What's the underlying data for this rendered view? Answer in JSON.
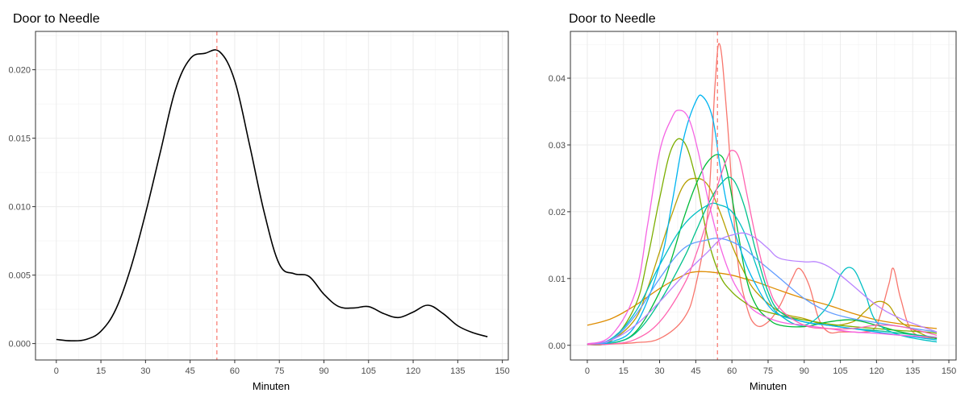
{
  "chart_data": [
    {
      "type": "line",
      "title": "Door to Needle",
      "xlabel": "Minuten",
      "ylabel": "",
      "xlim": [
        -7,
        152
      ],
      "ylim": [
        -0.0012,
        0.0228
      ],
      "xticks": [
        0,
        15,
        30,
        45,
        60,
        75,
        90,
        105,
        120,
        135,
        150
      ],
      "yticks": [
        0.0,
        0.005,
        0.01,
        0.015,
        0.02
      ],
      "ytick_labels": [
        "0.000",
        "0.005",
        "0.010",
        "0.015",
        "0.020"
      ],
      "grid": true,
      "reference_line": {
        "x": 54,
        "color": "#f8766d",
        "style": "dashed"
      },
      "series": [
        {
          "color": "#000000",
          "x": [
            0,
            5,
            10,
            15,
            20,
            25,
            30,
            35,
            40,
            45,
            50,
            55,
            60,
            65,
            70,
            75,
            80,
            85,
            90,
            95,
            100,
            105,
            110,
            115,
            120,
            125,
            130,
            135,
            140,
            145
          ],
          "y": [
            0.0003,
            0.0002,
            0.0003,
            0.0009,
            0.0025,
            0.0055,
            0.0095,
            0.014,
            0.0185,
            0.0208,
            0.0212,
            0.0213,
            0.0192,
            0.0145,
            0.0095,
            0.0058,
            0.0051,
            0.0049,
            0.0036,
            0.0027,
            0.0026,
            0.0027,
            0.0022,
            0.0019,
            0.0023,
            0.0028,
            0.0022,
            0.0013,
            0.0008,
            0.0005
          ]
        }
      ]
    },
    {
      "type": "line",
      "title": "Door to Needle",
      "xlabel": "Minuten",
      "ylabel": "",
      "xlim": [
        -7,
        153
      ],
      "ylim": [
        -0.0022,
        0.047
      ],
      "xticks": [
        0,
        15,
        30,
        45,
        60,
        75,
        90,
        105,
        120,
        135,
        150
      ],
      "yticks": [
        0.0,
        0.01,
        0.02,
        0.03,
        0.04
      ],
      "ytick_labels": [
        "0.00",
        "0.01",
        "0.02",
        "0.03",
        "0.04"
      ],
      "grid": true,
      "reference_line": {
        "x": 54,
        "color": "#f8766d",
        "style": "dashed"
      },
      "series": [
        {
          "color": "#f8766d",
          "x": [
            0,
            10,
            20,
            30,
            40,
            45,
            50,
            53,
            55,
            58,
            62,
            66,
            70,
            75,
            80,
            85,
            88,
            92,
            96,
            100,
            105,
            110,
            115,
            120,
            125,
            127,
            130,
            135,
            145
          ],
          "y": [
            0.0002,
            0.0002,
            0.0004,
            0.001,
            0.004,
            0.009,
            0.02,
            0.039,
            0.045,
            0.034,
            0.014,
            0.006,
            0.003,
            0.0035,
            0.006,
            0.01,
            0.0115,
            0.009,
            0.004,
            0.002,
            0.002,
            0.002,
            0.002,
            0.003,
            0.009,
            0.0115,
            0.007,
            0.002,
            0.001
          ]
        },
        {
          "color": "#de8c00",
          "x": [
            0,
            10,
            20,
            30,
            40,
            45,
            50,
            55,
            60,
            65,
            70,
            80,
            90,
            100,
            110,
            120,
            130,
            140,
            145
          ],
          "y": [
            0.003,
            0.004,
            0.006,
            0.0085,
            0.0105,
            0.011,
            0.011,
            0.0108,
            0.0105,
            0.01,
            0.0095,
            0.0082,
            0.007,
            0.006,
            0.0048,
            0.0038,
            0.0032,
            0.0027,
            0.0025
          ]
        },
        {
          "color": "#b79f00",
          "x": [
            0,
            10,
            20,
            25,
            30,
            35,
            40,
            45,
            50,
            55,
            60,
            65,
            70,
            80,
            90,
            100,
            110,
            115,
            120,
            125,
            130,
            140,
            145
          ],
          "y": [
            0.0002,
            0.0008,
            0.004,
            0.0085,
            0.014,
            0.0195,
            0.024,
            0.025,
            0.024,
            0.02,
            0.015,
            0.011,
            0.008,
            0.005,
            0.004,
            0.003,
            0.0035,
            0.005,
            0.0065,
            0.006,
            0.0035,
            0.0015,
            0.001
          ]
        },
        {
          "color": "#7cae00",
          "x": [
            0,
            10,
            20,
            25,
            30,
            35,
            40,
            45,
            50,
            55,
            60,
            65,
            70,
            80,
            90,
            100,
            110,
            120,
            130,
            140,
            145
          ],
          "y": [
            0.0001,
            0.0007,
            0.006,
            0.013,
            0.022,
            0.0295,
            0.0305,
            0.025,
            0.016,
            0.0105,
            0.008,
            0.0065,
            0.0055,
            0.0045,
            0.0038,
            0.0032,
            0.0028,
            0.0025,
            0.0022,
            0.002,
            0.0018
          ]
        },
        {
          "color": "#00ba38",
          "x": [
            0,
            10,
            20,
            30,
            35,
            40,
            45,
            50,
            55,
            58,
            62,
            66,
            70,
            75,
            80,
            90,
            100,
            110,
            120,
            130,
            145
          ],
          "y": [
            0.0001,
            0.0003,
            0.002,
            0.008,
            0.013,
            0.019,
            0.024,
            0.0275,
            0.0285,
            0.026,
            0.018,
            0.01,
            0.006,
            0.004,
            0.003,
            0.0028,
            0.0035,
            0.0038,
            0.003,
            0.002,
            0.001
          ]
        },
        {
          "color": "#00c08b",
          "x": [
            0,
            10,
            20,
            30,
            40,
            45,
            50,
            55,
            60,
            65,
            70,
            75,
            80,
            90,
            100,
            110,
            120,
            130,
            145
          ],
          "y": [
            0.0001,
            0.0003,
            0.0018,
            0.0065,
            0.013,
            0.017,
            0.021,
            0.024,
            0.025,
            0.021,
            0.014,
            0.008,
            0.005,
            0.0035,
            0.003,
            0.0025,
            0.0022,
            0.0018,
            0.0012
          ]
        },
        {
          "color": "#00bfc4",
          "x": [
            0,
            10,
            20,
            30,
            40,
            50,
            55,
            60,
            65,
            70,
            75,
            80,
            90,
            100,
            105,
            110,
            115,
            120,
            130,
            145
          ],
          "y": [
            0.0001,
            0.001,
            0.005,
            0.012,
            0.018,
            0.021,
            0.021,
            0.02,
            0.017,
            0.012,
            0.007,
            0.0045,
            0.003,
            0.006,
            0.0105,
            0.0115,
            0.008,
            0.0035,
            0.0015,
            0.0005
          ]
        },
        {
          "color": "#00b4f0",
          "x": [
            0,
            10,
            20,
            30,
            35,
            40,
            45,
            48,
            52,
            55,
            58,
            62,
            66,
            70,
            75,
            80,
            90,
            100,
            110,
            120,
            130,
            145
          ],
          "y": [
            0.0001,
            0.0005,
            0.003,
            0.012,
            0.021,
            0.031,
            0.0365,
            0.0372,
            0.034,
            0.027,
            0.021,
            0.016,
            0.012,
            0.009,
            0.006,
            0.0045,
            0.0035,
            0.003,
            0.0025,
            0.002,
            0.0015,
            0.0008
          ]
        },
        {
          "color": "#619cff",
          "x": [
            0,
            10,
            20,
            30,
            40,
            50,
            55,
            60,
            65,
            70,
            80,
            90,
            100,
            110,
            120,
            130,
            145
          ],
          "y": [
            0.0001,
            0.0008,
            0.0045,
            0.01,
            0.0145,
            0.0158,
            0.016,
            0.0155,
            0.0145,
            0.013,
            0.01,
            0.007,
            0.005,
            0.004,
            0.0034,
            0.0028,
            0.002
          ]
        },
        {
          "color": "#b983ff",
          "x": [
            0,
            10,
            20,
            30,
            40,
            50,
            55,
            60,
            65,
            70,
            75,
            80,
            90,
            95,
            100,
            105,
            110,
            120,
            130,
            145
          ],
          "y": [
            0.0002,
            0.0008,
            0.003,
            0.0065,
            0.0105,
            0.014,
            0.0158,
            0.0165,
            0.0168,
            0.016,
            0.0145,
            0.013,
            0.0125,
            0.0125,
            0.0118,
            0.0105,
            0.009,
            0.006,
            0.004,
            0.002
          ]
        },
        {
          "color": "#f564e3",
          "x": [
            0,
            10,
            20,
            25,
            30,
            35,
            38,
            42,
            46,
            50,
            55,
            60,
            65,
            70,
            80,
            90,
            100,
            110,
            120,
            130,
            145
          ],
          "y": [
            0.0002,
            0.0015,
            0.008,
            0.018,
            0.029,
            0.034,
            0.0352,
            0.034,
            0.029,
            0.022,
            0.015,
            0.01,
            0.007,
            0.005,
            0.0035,
            0.003,
            0.0025,
            0.002,
            0.0018,
            0.0015,
            0.0012
          ]
        },
        {
          "color": "#ff64b0",
          "x": [
            0,
            10,
            20,
            30,
            40,
            45,
            50,
            55,
            58,
            60,
            63,
            66,
            70,
            75,
            80,
            90,
            100,
            110,
            120,
            130,
            145
          ],
          "y": [
            0.0001,
            0.0002,
            0.0009,
            0.0035,
            0.009,
            0.0135,
            0.019,
            0.025,
            0.028,
            0.0292,
            0.028,
            0.023,
            0.016,
            0.009,
            0.0055,
            0.003,
            0.0025,
            0.0025,
            0.003,
            0.0028,
            0.0015
          ]
        }
      ]
    }
  ]
}
